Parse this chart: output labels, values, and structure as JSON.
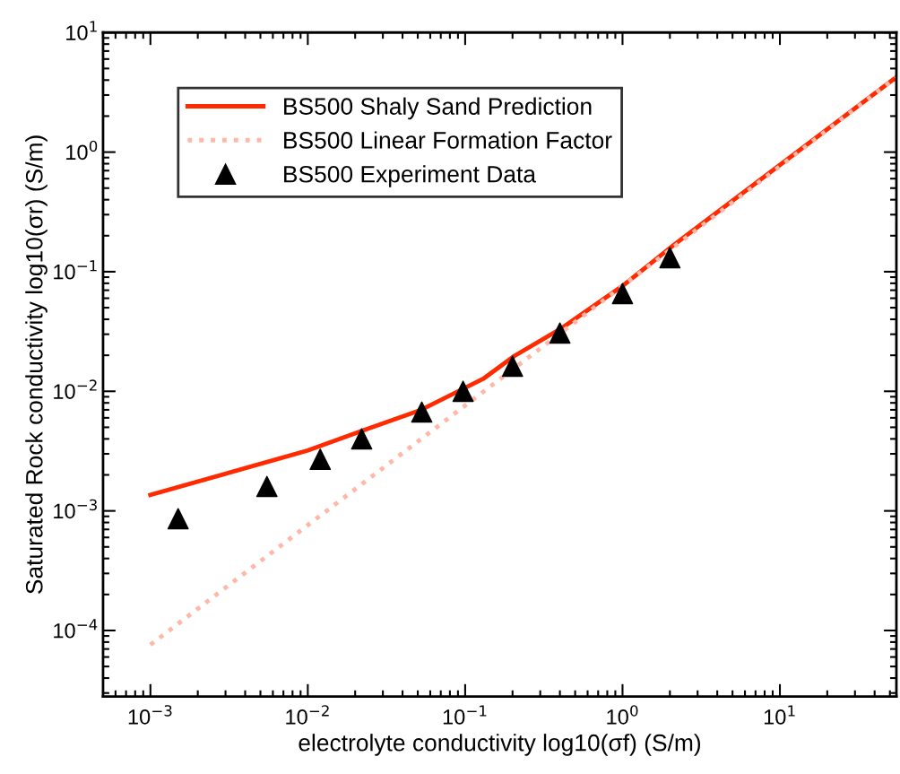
{
  "chart_data": {
    "type": "line",
    "xlabel": "electrolyte conductivity log10(σf) (S/m)",
    "ylabel": "Saturated Rock conductivity log10(σr) (S/m)",
    "log": "xy",
    "xlim": [
      0.0005,
      55
    ],
    "ylim": [
      2.8e-05,
      10
    ],
    "xticks": [
      {
        "value": 0.001,
        "label": "10$^{−3}$"
      },
      {
        "value": 0.01,
        "label": "10$^{−2}$"
      },
      {
        "value": 0.1,
        "label": "10$^{−1}$"
      },
      {
        "value": 1,
        "label": "10$^{0}$"
      },
      {
        "value": 10,
        "label": "10$^{1}$"
      }
    ],
    "yticks": [
      {
        "value": 0.0001,
        "label": "10$^{−4}$"
      },
      {
        "value": 0.001,
        "label": "10$^{−3}$"
      },
      {
        "value": 0.01,
        "label": "10$^{−2}$"
      },
      {
        "value": 0.1,
        "label": "10$^{−1}$"
      },
      {
        "value": 1,
        "label": "10$^{0}$"
      },
      {
        "value": 10,
        "label": "10$^{1}$"
      }
    ],
    "grid": false,
    "legend": "top left",
    "series": [
      {
        "name": "BS500 Shaly Sand Prediction",
        "line_style": "solid",
        "color": "#ff2a00",
        "x": [
          0.001,
          0.01,
          0.0224,
          0.0526,
          0.13,
          0.206,
          0.4,
          1,
          2.1,
          54.6
        ],
        "values": [
          0.00136,
          0.0032,
          0.0047,
          0.007,
          0.0127,
          0.0198,
          0.033,
          0.076,
          0.166,
          4.2
        ]
      },
      {
        "name": "BS500 Linear Formation Factor",
        "line_style": "dotted",
        "color": "#ffb8a8",
        "x": [
          0.001,
          0.01,
          0.1,
          1,
          10,
          54.6
        ],
        "values": [
          7.6e-05,
          0.00076,
          0.0076,
          0.076,
          0.76,
          4.2
        ]
      },
      {
        "name": "BS500 Experiment Data",
        "type": "scatter",
        "marker": "triangle",
        "color": "#000000",
        "x": [
          0.0015,
          0.0055,
          0.012,
          0.022,
          0.053,
          0.097,
          0.2,
          0.4,
          1,
          2
        ],
        "values": [
          0.00086,
          0.0016,
          0.0027,
          0.004,
          0.0067,
          0.01,
          0.0162,
          0.0307,
          0.0656,
          0.131
        ]
      }
    ]
  }
}
